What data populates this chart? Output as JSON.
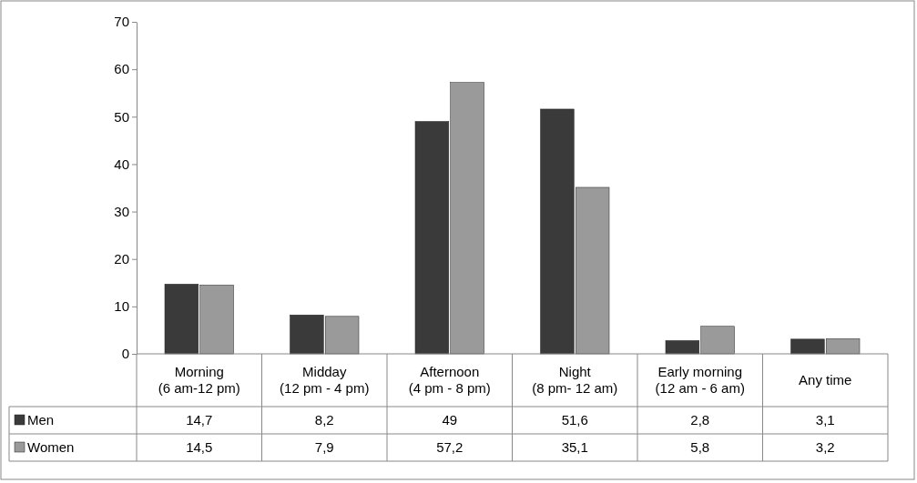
{
  "chart_data": {
    "type": "bar",
    "categories": [
      "Morning\n(6 am-12 pm)",
      "Midday\n(12 pm - 4 pm)",
      "Afternoon\n(4 pm - 8 pm)",
      "Night\n(8 pm- 12 am)",
      "Early morning\n(12 am - 6 am)",
      "Any time"
    ],
    "series": [
      {
        "name": "Men",
        "color": "#3a3a3a",
        "values": [
          14.7,
          8.2,
          49,
          51.6,
          2.8,
          3.1
        ],
        "value_labels": [
          "14,7",
          "8,2",
          "49",
          "51,6",
          "2,8",
          "3,1"
        ]
      },
      {
        "name": "Women",
        "color": "#9a9a9a",
        "values": [
          14.5,
          7.9,
          57.2,
          35.1,
          5.8,
          3.2
        ],
        "value_labels": [
          "14,5",
          "7,9",
          "57,2",
          "35,1",
          "5,8",
          "3,2"
        ]
      }
    ],
    "ylim": [
      0,
      70
    ],
    "yticks": [
      0,
      10,
      20,
      30,
      40,
      50,
      60,
      70
    ],
    "grid": false,
    "legend": "bottom left"
  }
}
